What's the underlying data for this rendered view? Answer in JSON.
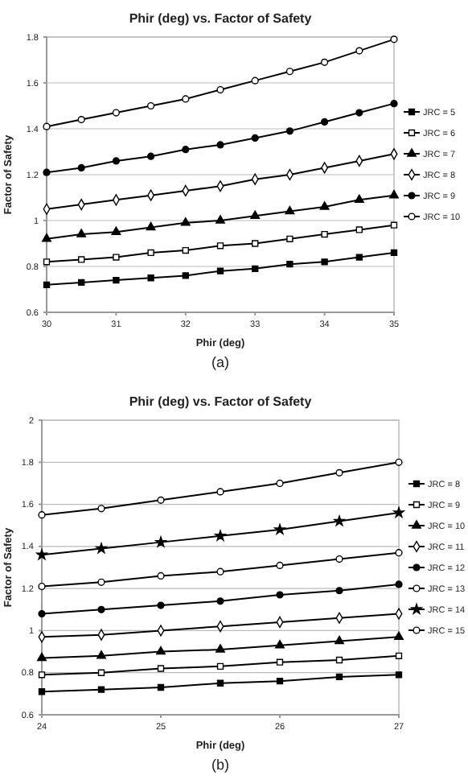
{
  "chart_data": [
    {
      "type": "line",
      "title": "Phir (deg) vs. Factor of Safety",
      "xlabel": "Phir (deg)",
      "ylabel": "Factor of Safety",
      "annotations": [
        "(a)"
      ],
      "x": [
        30,
        30.5,
        31,
        31.5,
        32,
        32.5,
        33,
        33.5,
        34,
        34.5,
        35
      ],
      "xlim": [
        30,
        35
      ],
      "xticks": [
        30,
        31,
        32,
        33,
        34,
        35
      ],
      "ylim": [
        0.6,
        1.8
      ],
      "yticks": [
        0.6,
        0.8,
        1,
        1.2,
        1.4,
        1.6,
        1.8
      ],
      "grid": "y",
      "legend": "right",
      "line_style": "solid",
      "series": [
        {
          "name": "JRC = 5",
          "color": "#000000",
          "marker": "square",
          "values": [
            0.72,
            0.73,
            0.74,
            0.75,
            0.76,
            0.78,
            0.79,
            0.81,
            0.82,
            0.84,
            0.86
          ]
        },
        {
          "name": "JRC = 6",
          "color": "#000000",
          "marker": "square",
          "values": [
            0.82,
            0.83,
            0.84,
            0.86,
            0.87,
            0.89,
            0.9,
            0.92,
            0.94,
            0.96,
            0.98
          ]
        },
        {
          "name": "JRC = 7",
          "color": "#000000",
          "marker": "triangle",
          "values": [
            0.92,
            0.94,
            0.95,
            0.97,
            0.99,
            1.0,
            1.02,
            1.04,
            1.06,
            1.09,
            1.11
          ]
        },
        {
          "name": "JRC = 8",
          "color": "#000000",
          "marker": "diamond",
          "values": [
            1.05,
            1.07,
            1.09,
            1.11,
            1.13,
            1.15,
            1.18,
            1.2,
            1.23,
            1.26,
            1.29
          ]
        },
        {
          "name": "JRC = 9",
          "color": "#000000",
          "marker": "circle",
          "values": [
            1.21,
            1.23,
            1.26,
            1.28,
            1.31,
            1.33,
            1.36,
            1.39,
            1.43,
            1.47,
            1.51
          ]
        },
        {
          "name": "JRC = 10",
          "color": "#000000",
          "marker": "circle",
          "values": [
            1.41,
            1.44,
            1.47,
            1.5,
            1.53,
            1.57,
            1.61,
            1.65,
            1.69,
            1.74,
            1.79
          ]
        }
      ]
    },
    {
      "type": "line",
      "title": "Phir (deg) vs. Factor of Safety",
      "xlabel": "Phir (deg)",
      "ylabel": "Factor of Safety",
      "annotations": [
        "(b)"
      ],
      "x": [
        24,
        24.5,
        25,
        25.5,
        26,
        26.5,
        27
      ],
      "xlim": [
        24,
        27
      ],
      "xticks": [
        24,
        25,
        26,
        27
      ],
      "ylim": [
        0.6,
        2
      ],
      "yticks": [
        0.6,
        0.8,
        1,
        1.2,
        1.4,
        1.6,
        1.8,
        2
      ],
      "grid": "y",
      "legend": "right",
      "line_style": "solid",
      "series": [
        {
          "name": "JRC = 8",
          "color": "#000000",
          "marker": "square",
          "values": [
            0.71,
            0.72,
            0.73,
            0.75,
            0.76,
            0.78,
            0.79
          ]
        },
        {
          "name": "JRC = 9",
          "color": "#000000",
          "marker": "square",
          "values": [
            0.79,
            0.8,
            0.82,
            0.83,
            0.85,
            0.86,
            0.88
          ]
        },
        {
          "name": "JRC = 10",
          "color": "#000000",
          "marker": "triangle",
          "values": [
            0.87,
            0.88,
            0.9,
            0.91,
            0.93,
            0.95,
            0.97
          ]
        },
        {
          "name": "JRC = 11",
          "color": "#000000",
          "marker": "diamond",
          "values": [
            0.97,
            0.98,
            1.0,
            1.02,
            1.04,
            1.06,
            1.08
          ]
        },
        {
          "name": "JRC = 12",
          "color": "#000000",
          "marker": "circle",
          "values": [
            1.08,
            1.1,
            1.12,
            1.14,
            1.17,
            1.19,
            1.22
          ]
        },
        {
          "name": "JRC = 13",
          "color": "#000000",
          "marker": "circle",
          "values": [
            1.21,
            1.23,
            1.26,
            1.28,
            1.31,
            1.34,
            1.37
          ]
        },
        {
          "name": "JRC = 14",
          "color": "#000000",
          "marker": "star",
          "values": [
            1.36,
            1.39,
            1.42,
            1.45,
            1.48,
            1.52,
            1.56
          ]
        },
        {
          "name": "JRC = 15",
          "color": "#000000",
          "marker": "circle",
          "values": [
            1.55,
            1.58,
            1.62,
            1.66,
            1.7,
            1.75,
            1.8
          ]
        }
      ]
    }
  ]
}
